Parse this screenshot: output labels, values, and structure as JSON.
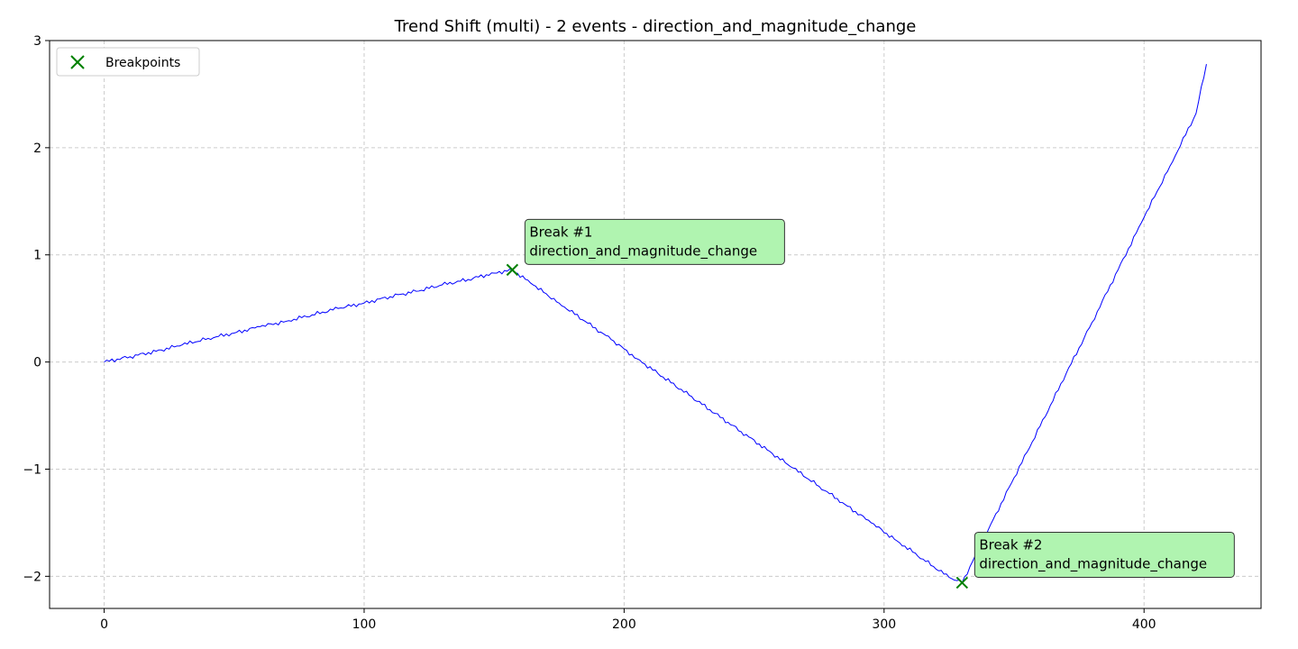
{
  "chart_data": {
    "type": "line",
    "title": "Trend Shift (multi) - 2 events - direction_and_magnitude_change",
    "xlabel": "",
    "ylabel": "",
    "xlim": [
      -21,
      445
    ],
    "ylim": [
      -2.3,
      3.0
    ],
    "xticks": [
      0,
      100,
      200,
      300,
      400
    ],
    "xtick_labels": [
      "0",
      "100",
      "200",
      "300",
      "400"
    ],
    "yticks": [
      -2,
      -1,
      0,
      1,
      2,
      3
    ],
    "ytick_labels": [
      "−2",
      "−1",
      "0",
      "1",
      "2",
      "3"
    ],
    "grid": true,
    "legend_position": "top-left",
    "series": [
      {
        "color": "#0000ff",
        "x": [
          0,
          10,
          20,
          30,
          40,
          50,
          60,
          70,
          80,
          90,
          100,
          110,
          120,
          130,
          140,
          150,
          157,
          165,
          175,
          185,
          195,
          205,
          215,
          225,
          235,
          245,
          255,
          265,
          275,
          285,
          295,
          305,
          315,
          325,
          330,
          340,
          350,
          360,
          370,
          380,
          390,
          400,
          410,
          420,
          424
        ],
        "y": [
          0.0,
          0.05,
          0.1,
          0.16,
          0.22,
          0.27,
          0.33,
          0.38,
          0.44,
          0.5,
          0.55,
          0.61,
          0.66,
          0.72,
          0.77,
          0.83,
          0.86,
          0.72,
          0.55,
          0.38,
          0.21,
          0.03,
          -0.14,
          -0.31,
          -0.48,
          -0.65,
          -0.82,
          -0.99,
          -1.16,
          -1.33,
          -1.5,
          -1.67,
          -1.84,
          -2.01,
          -2.06,
          -1.57,
          -1.08,
          -0.6,
          -0.11,
          0.37,
          0.86,
          1.35,
          1.83,
          2.32,
          2.78
        ]
      }
    ],
    "breakpoints": {
      "name": "Breakpoints",
      "color": "#008000",
      "points": [
        {
          "x": 157,
          "y": 0.86,
          "label": "Break #1",
          "sublabel": "direction_and_magnitude_change"
        },
        {
          "x": 330,
          "y": -2.06,
          "label": "Break #2",
          "sublabel": "direction_and_magnitude_change"
        }
      ]
    },
    "annotation_style": {
      "fill": "#b0f4b0",
      "border": "#333333"
    }
  }
}
